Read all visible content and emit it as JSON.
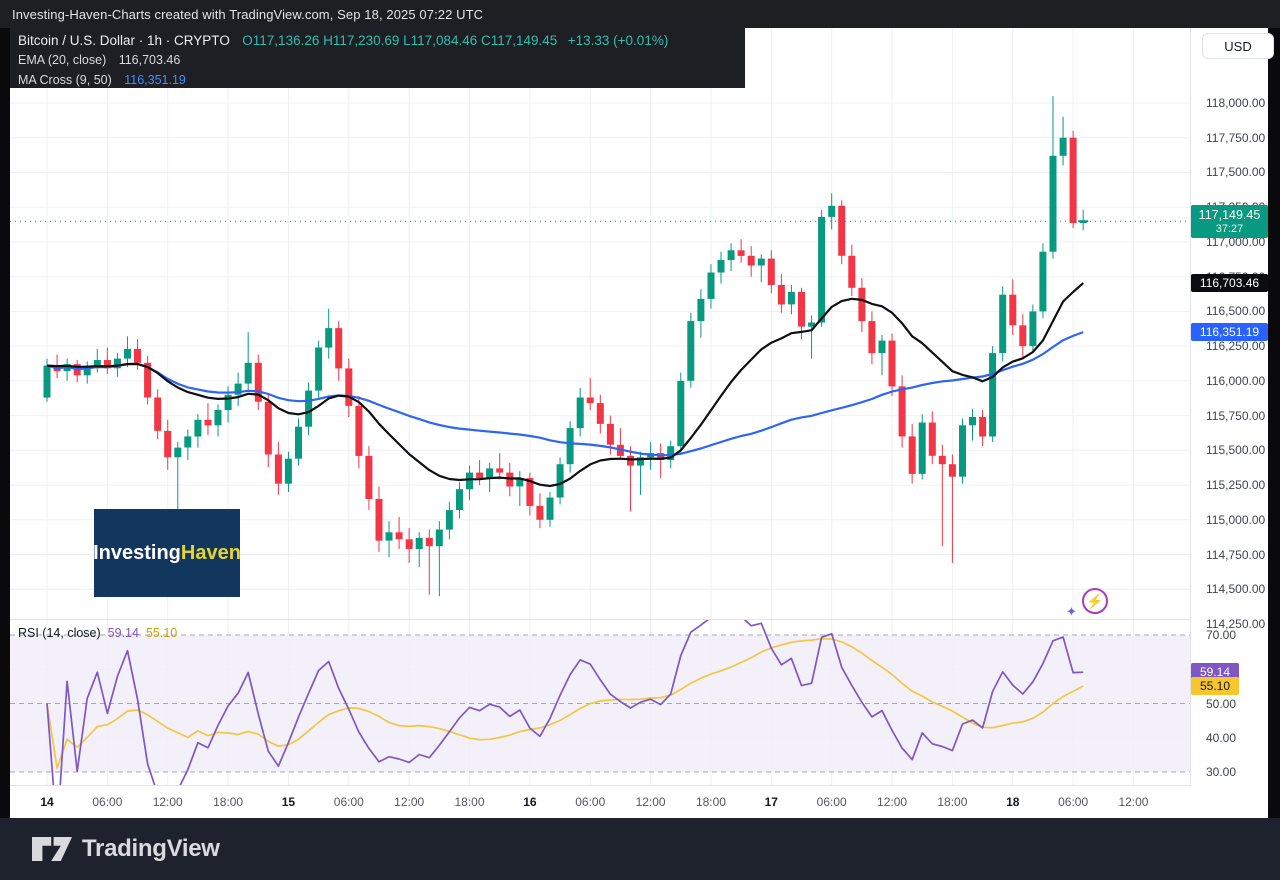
{
  "top_bar": {
    "title": "Investing-Haven-Charts created with TradingView.com, Sep 18, 2025 07:22 UTC"
  },
  "legend": {
    "symbol_line": {
      "title": "Bitcoin / U.S. Dollar · 1h · CRYPTO",
      "ohlc": "O117,136.26  H117,230.69  L117,084.46  C117,149.45",
      "change": "+13.33 (+0.01%)"
    },
    "ema_line": {
      "label": "EMA (20, close)",
      "value": "116,703.46"
    },
    "ma_cross_line": {
      "label": "MA Cross (9, 50)",
      "value": "116,351.19"
    }
  },
  "price_axis": {
    "currency": "USD",
    "labels": [
      "118,000.00",
      "117,750.00",
      "117,500.00",
      "117,250.00",
      "117,000.00",
      "116,750.00",
      "116,500.00",
      "116,250.00",
      "116,000.00",
      "115,750.00",
      "115,500.00",
      "115,250.00",
      "115,000.00",
      "114,750.00",
      "114,500.00",
      "114,250.00"
    ],
    "badges": {
      "last": {
        "price": "117,149.45",
        "countdown": "37:27",
        "color": "#089981"
      },
      "ema": {
        "value": "116,703.46",
        "color": "#0b0c10"
      },
      "ma": {
        "value": "116,351.19",
        "color": "#2962ff"
      }
    }
  },
  "rsi_panel": {
    "legend_label": "RSI (14, close)",
    "rsi_value": "59.14",
    "ma_value": "55.10",
    "axis_labels": [
      "70.00",
      "50.00",
      "40.00",
      "30.00"
    ],
    "badges": {
      "rsi": {
        "value": "59.14",
        "color": "#7e57c2"
      },
      "rsi_ma": {
        "value": "55.10",
        "color": "#f7c52d"
      }
    }
  },
  "watermark": {
    "part1": "Investing",
    "part2": "Haven"
  },
  "footer": {
    "brand": "TradingView"
  },
  "chart_data": {
    "type": "candlestick",
    "symbol": "Bitcoin / U.S. Dollar",
    "interval": "1h",
    "exchange": "CRYPTO",
    "title": "Bitcoin / U.S. Dollar · 1h · CRYPTO",
    "ohlc_current": {
      "open": 117136.26,
      "high": 117230.69,
      "low": 117084.46,
      "close": 117149.45,
      "change": 13.33,
      "change_pct": 0.01
    },
    "up_color": "#089981",
    "down_color": "#f23645",
    "ema_color": "#0f1012",
    "ma_color": "#2e66f4",
    "price_ticks": [
      118000,
      117750,
      117500,
      117250,
      117000,
      116750,
      116500,
      116250,
      116000,
      115750,
      115500,
      115250,
      115000,
      114750,
      114500,
      114250
    ],
    "price_range": [
      114250,
      118000
    ],
    "start_time": "Sep 14, 00:00 UTC",
    "indicators": [
      {
        "name": "EMA",
        "params": [
          20,
          "close"
        ],
        "last": 116703.46
      },
      {
        "name": "MA Cross",
        "params": [
          9,
          50
        ],
        "last": 116351.19
      }
    ],
    "rsi": {
      "name": "RSI",
      "params": [
        14,
        "close"
      ],
      "last": 59.14,
      "ma_last": 55.1,
      "levels": [
        70,
        50,
        30
      ],
      "range": [
        25,
        75
      ]
    },
    "time_ticks": [
      {
        "label": "14",
        "hour": 0,
        "bold": true
      },
      {
        "label": "06:00",
        "hour": 6
      },
      {
        "label": "12:00",
        "hour": 12
      },
      {
        "label": "18:00",
        "hour": 18
      },
      {
        "label": "15",
        "hour": 24,
        "bold": true
      },
      {
        "label": "06:00",
        "hour": 30
      },
      {
        "label": "12:00",
        "hour": 36
      },
      {
        "label": "18:00",
        "hour": 42
      },
      {
        "label": "16",
        "hour": 48,
        "bold": true
      },
      {
        "label": "06:00",
        "hour": 54
      },
      {
        "label": "12:00",
        "hour": 60
      },
      {
        "label": "18:00",
        "hour": 66
      },
      {
        "label": "17",
        "hour": 72,
        "bold": true
      },
      {
        "label": "06:00",
        "hour": 78
      },
      {
        "label": "12:00",
        "hour": 84
      },
      {
        "label": "18:00",
        "hour": 90
      },
      {
        "label": "18",
        "hour": 96,
        "bold": true
      },
      {
        "label": "06:00",
        "hour": 102
      },
      {
        "label": "12:00",
        "hour": 108
      }
    ],
    "candles": [
      [
        115880,
        116160,
        115850,
        116110
      ],
      [
        116110,
        116190,
        116020,
        116070
      ],
      [
        116070,
        116160,
        116000,
        116120
      ],
      [
        116120,
        116150,
        115990,
        116040
      ],
      [
        116040,
        116140,
        115980,
        116110
      ],
      [
        116110,
        116230,
        116060,
        116150
      ],
      [
        116150,
        116240,
        116050,
        116090
      ],
      [
        116090,
        116200,
        116030,
        116160
      ],
      [
        116160,
        116320,
        116100,
        116230
      ],
      [
        116230,
        116300,
        116080,
        116130
      ],
      [
        116130,
        116180,
        115830,
        115880
      ],
      [
        115880,
        115940,
        115580,
        115640
      ],
      [
        115640,
        115720,
        115360,
        115450
      ],
      [
        115450,
        115560,
        115050,
        115520
      ],
      [
        115520,
        115650,
        115430,
        115600
      ],
      [
        115600,
        115760,
        115520,
        115720
      ],
      [
        115720,
        115840,
        115610,
        115680
      ],
      [
        115680,
        115830,
        115600,
        115790
      ],
      [
        115790,
        115960,
        115700,
        115900
      ],
      [
        115900,
        116060,
        115820,
        115980
      ],
      [
        115980,
        116350,
        115920,
        116130
      ],
      [
        116130,
        116190,
        115790,
        115850
      ],
      [
        115850,
        115910,
        115380,
        115470
      ],
      [
        115470,
        115560,
        115180,
        115260
      ],
      [
        115260,
        115490,
        115200,
        115440
      ],
      [
        115440,
        115730,
        115390,
        115670
      ],
      [
        115670,
        115990,
        115610,
        115930
      ],
      [
        115930,
        116290,
        115870,
        116240
      ],
      [
        116240,
        116520,
        116160,
        116380
      ],
      [
        116380,
        116430,
        116000,
        116090
      ],
      [
        116090,
        116160,
        115740,
        115820
      ],
      [
        115820,
        115890,
        115370,
        115460
      ],
      [
        115460,
        115530,
        115070,
        115150
      ],
      [
        115150,
        115240,
        114770,
        114850
      ],
      [
        114850,
        114990,
        114730,
        114910
      ],
      [
        114910,
        115020,
        114790,
        114860
      ],
      [
        114860,
        114940,
        114690,
        114790
      ],
      [
        114790,
        114910,
        114660,
        114870
      ],
      [
        114870,
        114930,
        114460,
        114810
      ],
      [
        114810,
        114990,
        114450,
        114930
      ],
      [
        114930,
        115130,
        114860,
        115070
      ],
      [
        115070,
        115270,
        115010,
        115220
      ],
      [
        115220,
        115390,
        115140,
        115340
      ],
      [
        115340,
        115430,
        115250,
        115300
      ],
      [
        115300,
        115410,
        115200,
        115370
      ],
      [
        115370,
        115480,
        115290,
        115340
      ],
      [
        115340,
        115410,
        115170,
        115240
      ],
      [
        115240,
        115350,
        115100,
        115300
      ],
      [
        115300,
        115340,
        115030,
        115100
      ],
      [
        115100,
        115190,
        114940,
        115000
      ],
      [
        115000,
        115200,
        114950,
        115160
      ],
      [
        115160,
        115450,
        115110,
        115400
      ],
      [
        115400,
        115710,
        115340,
        115660
      ],
      [
        115660,
        115950,
        115600,
        115880
      ],
      [
        115880,
        116020,
        115790,
        115840
      ],
      [
        115840,
        115900,
        115620,
        115690
      ],
      [
        115690,
        115750,
        115470,
        115540
      ],
      [
        115540,
        115660,
        115440,
        115460
      ],
      [
        115460,
        115530,
        115060,
        115390
      ],
      [
        115390,
        115490,
        115180,
        115450
      ],
      [
        115450,
        115560,
        115360,
        115480
      ],
      [
        115480,
        115550,
        115300,
        115430
      ],
      [
        115430,
        115570,
        115370,
        115530
      ],
      [
        115530,
        116060,
        115480,
        116000
      ],
      [
        116000,
        116490,
        115950,
        116430
      ],
      [
        116430,
        116660,
        116310,
        116590
      ],
      [
        116590,
        116840,
        116520,
        116780
      ],
      [
        116780,
        116930,
        116700,
        116870
      ],
      [
        116870,
        116990,
        116790,
        116940
      ],
      [
        116940,
        117020,
        116850,
        116900
      ],
      [
        116900,
        116970,
        116750,
        116830
      ],
      [
        116830,
        116910,
        116710,
        116880
      ],
      [
        116880,
        116940,
        116630,
        116690
      ],
      [
        116690,
        116770,
        116490,
        116550
      ],
      [
        116550,
        116690,
        116480,
        116640
      ],
      [
        116640,
        116670,
        116300,
        116390
      ],
      [
        116390,
        116470,
        116160,
        116420
      ],
      [
        116420,
        117230,
        116390,
        117180
      ],
      [
        117180,
        117350,
        117090,
        117260
      ],
      [
        117260,
        117300,
        116840,
        116900
      ],
      [
        116900,
        116980,
        116610,
        116670
      ],
      [
        116670,
        116740,
        116350,
        116430
      ],
      [
        116430,
        116500,
        116120,
        116200
      ],
      [
        116200,
        116330,
        116040,
        116290
      ],
      [
        116290,
        116340,
        115890,
        115960
      ],
      [
        115960,
        116040,
        115520,
        115600
      ],
      [
        115600,
        115690,
        115260,
        115330
      ],
      [
        115330,
        115760,
        115290,
        115700
      ],
      [
        115700,
        115780,
        115400,
        115460
      ],
      [
        115460,
        115540,
        114810,
        115400
      ],
      [
        115400,
        115470,
        114690,
        115310
      ],
      [
        115310,
        115730,
        115260,
        115680
      ],
      [
        115680,
        115800,
        115570,
        115740
      ],
      [
        115740,
        115790,
        115530,
        115600
      ],
      [
        115600,
        116250,
        115560,
        116200
      ],
      [
        116200,
        116680,
        116140,
        116620
      ],
      [
        116620,
        116730,
        116330,
        116400
      ],
      [
        116400,
        116480,
        116160,
        116250
      ],
      [
        116250,
        116550,
        116200,
        116500
      ],
      [
        116500,
        116990,
        116450,
        116930
      ],
      [
        116930,
        118050,
        116880,
        117620
      ],
      [
        117620,
        117900,
        117550,
        117750
      ],
      [
        117750,
        117800,
        117100,
        117136.26
      ],
      [
        117136.26,
        117230.69,
        117084.46,
        117149.45
      ]
    ]
  }
}
